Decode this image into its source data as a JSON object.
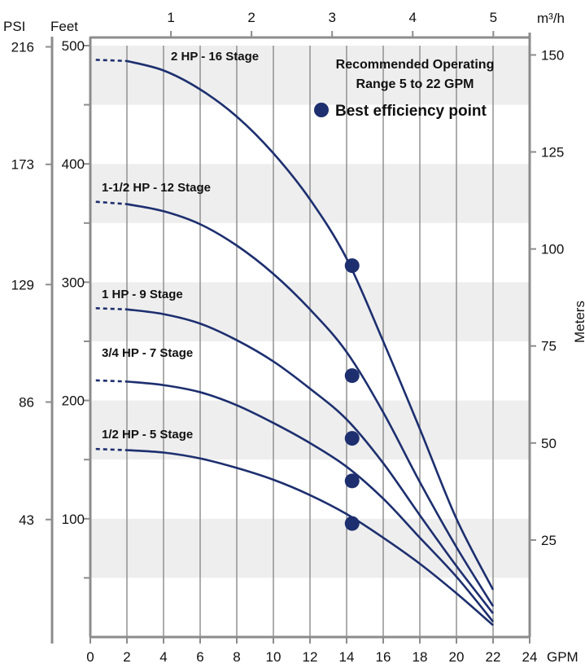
{
  "chart_data": {
    "type": "line",
    "colors": {
      "curve": "#1d2f6f",
      "axis": "#8c8c8c",
      "band": "#eeeeee",
      "grid": "#8a8a8a"
    },
    "axes": {
      "gpm": {
        "label": "GPM",
        "ticks": [
          "0",
          "2",
          "4",
          "6",
          "8",
          "10",
          "12",
          "14",
          "16",
          "18",
          "20",
          "22",
          "24"
        ],
        "range": [
          0,
          24
        ]
      },
      "m3h": {
        "label": "m³/h",
        "ticks": [
          "1",
          "2",
          "3",
          "4",
          "5"
        ],
        "values": [
          1,
          2,
          3,
          4,
          5
        ]
      },
      "feet": {
        "label": "Feet",
        "ticks": [
          "100",
          "200",
          "300",
          "400",
          "500"
        ],
        "values": [
          100,
          200,
          300,
          400,
          500
        ],
        "range": [
          0,
          510
        ]
      },
      "psi": {
        "label": "PSI",
        "ticks": [
          "43",
          "86",
          "129",
          "173",
          "216"
        ],
        "values": [
          43,
          86,
          129,
          173,
          216
        ]
      },
      "meters": {
        "label": "Meters",
        "ticks": [
          "25",
          "50",
          "75",
          "100",
          "125",
          "150"
        ],
        "values": [
          25,
          50,
          75,
          100,
          125,
          150
        ]
      }
    },
    "legend": {
      "line1": "Recommended Operating",
      "line2": "Range 5 to 22 GPM",
      "bep": "Best efficiency point"
    },
    "series": [
      {
        "name": "2 HP - 16 Stage",
        "x": [
          2,
          4,
          6,
          8,
          10,
          12,
          14,
          16,
          18,
          20,
          22
        ],
        "y": [
          487,
          479,
          463,
          440,
          409,
          370,
          320,
          250,
          176,
          100,
          40
        ],
        "dashed_start": 488,
        "bep": [
          14.3,
          314
        ]
      },
      {
        "name": "1-1/2 HP - 12 Stage",
        "x": [
          2,
          4,
          6,
          8,
          10,
          12,
          14,
          16,
          18,
          20,
          22
        ],
        "y": [
          366,
          360,
          349,
          331,
          307,
          277,
          241,
          190,
          131,
          76,
          26
        ],
        "dashed_start": 368,
        "bep": [
          14.3,
          221
        ]
      },
      {
        "name": "1 HP - 9 Stage",
        "x": [
          2,
          4,
          6,
          8,
          10,
          12,
          14,
          16,
          18,
          20,
          22
        ],
        "y": [
          277,
          273,
          265,
          251,
          233,
          210,
          184,
          147,
          103,
          60,
          20
        ],
        "dashed_start": 278,
        "bep": [
          14.3,
          168
        ]
      },
      {
        "name": "3/4 HP - 7 Stage",
        "x": [
          2,
          4,
          6,
          8,
          10,
          12,
          14,
          16,
          18,
          20,
          22
        ],
        "y": [
          216,
          213,
          207,
          196,
          181,
          164,
          144,
          117,
          84,
          51,
          13
        ],
        "dashed_start": 217,
        "bep": [
          14.3,
          132
        ]
      },
      {
        "name": "1/2 HP - 5 Stage",
        "x": [
          2,
          4,
          6,
          8,
          10,
          12,
          14,
          16,
          18,
          20,
          22
        ],
        "y": [
          158,
          156,
          151,
          143,
          133,
          120,
          104,
          84,
          62,
          37,
          10
        ],
        "dashed_start": 159,
        "bep": [
          14.3,
          96
        ]
      }
    ]
  }
}
